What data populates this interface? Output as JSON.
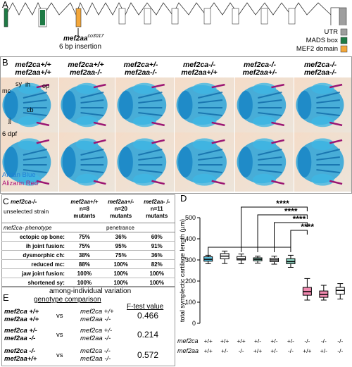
{
  "panel_labels": {
    "a": "A",
    "b": "B",
    "c": "C",
    "d": "D",
    "e": "E"
  },
  "panelA": {
    "allele_label": "mef2aa",
    "allele_super": "co3017",
    "insertion_label": "6 bp insertion",
    "legend": [
      {
        "label": "UTR",
        "color": "#9e9e9e"
      },
      {
        "label": "MADS box",
        "color": "#1e7b45"
      },
      {
        "label": "MEF2 domain",
        "color": "#f3a73b"
      }
    ]
  },
  "panelB": {
    "columns": [
      {
        "line1": "mef2ca+/+",
        "line2": "mef2aa+/+"
      },
      {
        "line1": "mef2ca+/+",
        "line2": "mef2aa-/-"
      },
      {
        "line1": "mef2ca+/-",
        "line2": "mef2aa-/-"
      },
      {
        "line1": "mef2ca-/-",
        "line2": "mef2aa+/+"
      },
      {
        "line1": "mef2ca-/-",
        "line2": "mef2aa+/-"
      },
      {
        "line1": "mef2ca-/-",
        "line2": "mef2aa-/-"
      }
    ],
    "structure_labels": {
      "mc": "mc",
      "sy": "sy",
      "ih": "ih",
      "op": "op",
      "cb": "cb",
      "jj": "jj"
    },
    "age": "6 dpf",
    "stain1": "Alcian Blue",
    "stain2": "Alizarin Red",
    "stain1_color": "#1f7fd6",
    "stain2_color": "#b0197a"
  },
  "panelC": {
    "strain_line1": "mef2ca-/-",
    "strain_line2": "unselected strain",
    "headers": [
      {
        "geno": "mef2aa+/+",
        "n": "n=8",
        "m": "mutants"
      },
      {
        "geno": "mef2aa+/-",
        "n": "n=20",
        "m": "mutants"
      },
      {
        "geno": "mef2aa- /-",
        "n": "n=11",
        "m": "mutants"
      }
    ],
    "phenotype_header": "mef2ca- phenotype",
    "penetrance_header": "penetrance",
    "rows": [
      {
        "name": "ectopic op bone:",
        "v": [
          "75%",
          "36%",
          "60%"
        ]
      },
      {
        "name": "ih joint fusion:",
        "v": [
          "75%",
          "95%",
          "91%"
        ]
      },
      {
        "name": "dysmorphic ch:",
        "v": [
          "38%",
          "75%",
          "36%"
        ]
      },
      {
        "name": "reduced mc:",
        "v": [
          "88%",
          "100%",
          "82%"
        ]
      },
      {
        "name": "jaw joint fusion:",
        "v": [
          "100%",
          "100%",
          "100%"
        ]
      },
      {
        "name": "shortened sy:",
        "v": [
          "100%",
          "100%",
          "100%"
        ]
      }
    ]
  },
  "panelE": {
    "title": "among-individual variation",
    "col1": "genotype comparison",
    "col2": "F-test value",
    "vs": "vs",
    "rows": [
      {
        "a1": "mef2ca +/+",
        "a2": "mef2aa +/+",
        "b1": "mef2ca +/+",
        "b2": "mef2aa -/-",
        "f": "0.466"
      },
      {
        "a1": "mef2ca +/-",
        "a2": "mef2aa -/-",
        "b1": "mef2ca +/-",
        "b2": "mef2aa -/-",
        "f": "0.214"
      },
      {
        "a1": "mef2ca -/-",
        "a2": "mef2aa+/+",
        "b1": "mef2ca -/-",
        "b2": "mef2aa -/-",
        "f": "0.572"
      }
    ]
  },
  "chart_data": {
    "type": "box",
    "ylabel": "total symplectic cartilage length (µm)",
    "ylim": [
      0,
      500
    ],
    "yticks": [
      0,
      100,
      200,
      300,
      400,
      500
    ],
    "row_label_1": "mef2ca",
    "row_label_2": "mef2aa",
    "categories": [
      {
        "ca": "+/+",
        "aa": "+/+"
      },
      {
        "ca": "+/+",
        "aa": "+/-"
      },
      {
        "ca": "+/+",
        "aa": "-/-"
      },
      {
        "ca": "+/-",
        "aa": "+/+"
      },
      {
        "ca": "+/-",
        "aa": "+/-"
      },
      {
        "ca": "+/-",
        "aa": "-/-"
      },
      {
        "ca": "-/-",
        "aa": "+/+"
      },
      {
        "ca": "-/-",
        "aa": "+/-"
      },
      {
        "ca": "-/-",
        "aa": "-/-"
      }
    ],
    "boxes": [
      {
        "min": 282,
        "q1": 294,
        "median": 303,
        "q3": 315,
        "max": 322,
        "color": "#5bc0de"
      },
      {
        "min": 283,
        "q1": 305,
        "median": 318,
        "q3": 330,
        "max": 342,
        "color": "#ffffff"
      },
      {
        "min": 282,
        "q1": 300,
        "median": 305,
        "q3": 316,
        "max": 328,
        "color": "#ffffff"
      },
      {
        "min": 285,
        "q1": 296,
        "median": 303,
        "q3": 310,
        "max": 318,
        "color": "#90d4c2"
      },
      {
        "min": 280,
        "q1": 292,
        "median": 300,
        "q3": 308,
        "max": 318,
        "color": "#ffffff"
      },
      {
        "min": 265,
        "q1": 282,
        "median": 292,
        "q3": 306,
        "max": 322,
        "color": "#90d4c2"
      },
      {
        "min": 110,
        "q1": 133,
        "median": 150,
        "q3": 170,
        "max": 212,
        "color": "#f08ab0"
      },
      {
        "min": 110,
        "q1": 123,
        "median": 137,
        "q3": 153,
        "max": 180,
        "color": "#f08ab0"
      },
      {
        "min": 115,
        "q1": 138,
        "median": 156,
        "q3": 170,
        "max": 188,
        "color": "#ffffff"
      }
    ],
    "significance": [
      {
        "from": 2,
        "to": 6,
        "label": "****"
      },
      {
        "from": 3,
        "to": 6,
        "label": "****"
      },
      {
        "from": 4,
        "to": 6,
        "label": "****"
      },
      {
        "from": 5,
        "to": 6,
        "label": "****"
      }
    ]
  }
}
